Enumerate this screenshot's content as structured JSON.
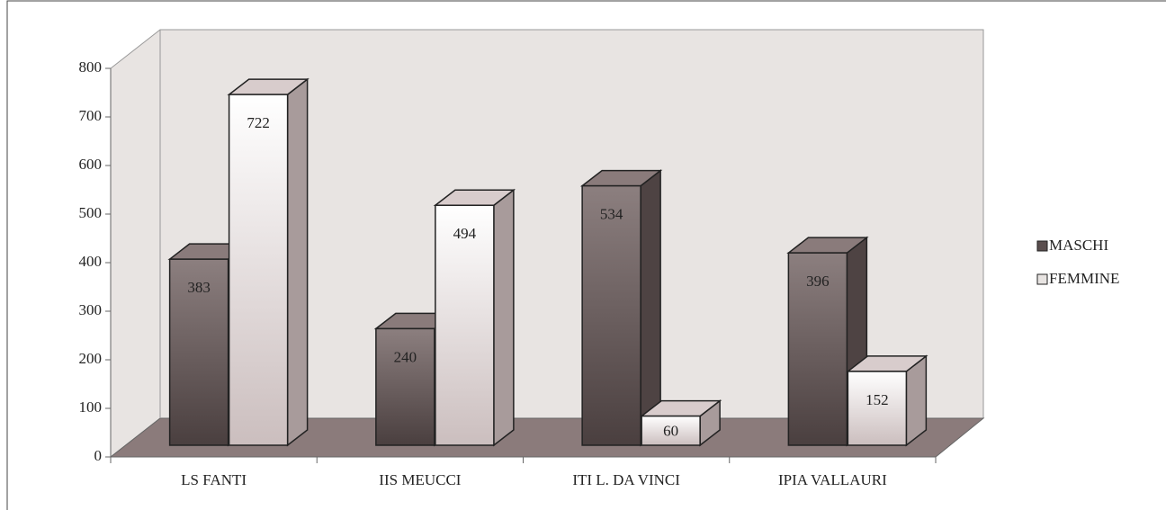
{
  "chart_data": {
    "type": "bar3d",
    "categories": [
      "LS FANTI",
      "IIS MEUCCI",
      "ITI L. DA VINCI",
      "IPIA VALLAURI"
    ],
    "series": [
      {
        "name": "MASCHI",
        "color": "#6e6262",
        "values": [
          383,
          240,
          534,
          396
        ]
      },
      {
        "name": "FEMMINE",
        "color": "#f4f0ee",
        "values": [
          722,
          494,
          60,
          152
        ]
      }
    ],
    "ylim": [
      0,
      800
    ],
    "yticks": [
      0,
      100,
      200,
      300,
      400,
      500,
      600,
      700,
      800
    ],
    "legend": "right"
  }
}
